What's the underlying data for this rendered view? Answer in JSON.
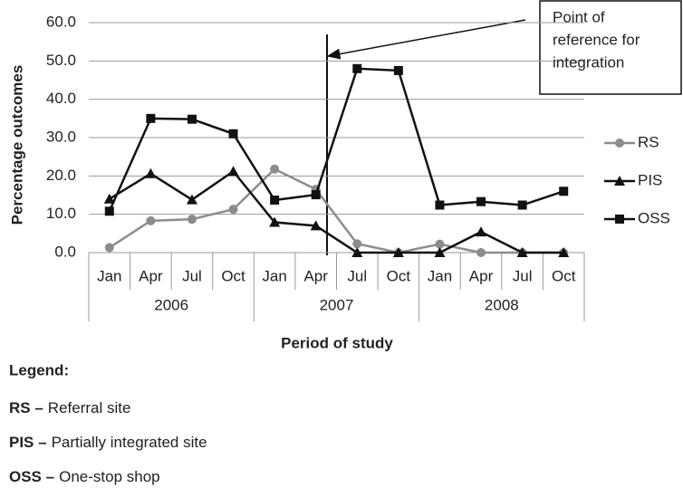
{
  "chart_data": {
    "type": "line",
    "y_label": "Percentage outcomes",
    "x_label": "Period of study",
    "categories": [
      "Jan",
      "Apr",
      "Jul",
      "Oct",
      "Jan",
      "Apr",
      "Jul",
      "Oct",
      "Jan",
      "Apr",
      "Jul",
      "Oct"
    ],
    "groups": [
      "2006",
      "2007",
      "2008"
    ],
    "series": [
      {
        "name": "RS",
        "color": "#8c8c8c",
        "marker": "circle",
        "values": [
          1.3,
          8.3,
          8.7,
          11.3,
          21.8,
          16.5,
          2.3,
          0,
          2.2,
          0,
          0,
          0
        ]
      },
      {
        "name": "PIS",
        "color": "#111111",
        "marker": "triangle",
        "values": [
          14,
          20.6,
          13.8,
          21.2,
          7.9,
          7.0,
          0,
          0,
          0,
          5.4,
          0,
          0
        ]
      },
      {
        "name": "OSS",
        "color": "#111111",
        "marker": "square",
        "values": [
          10.8,
          35,
          34.8,
          31,
          13.7,
          15.1,
          48,
          47.5,
          12.4,
          13.3,
          12.4,
          16
        ]
      }
    ],
    "ylim": [
      0,
      60
    ],
    "yticks": [
      {
        "value": 0,
        "label": "0.0"
      },
      {
        "value": 10,
        "label": "10.0"
      },
      {
        "value": 20,
        "label": "20.0"
      },
      {
        "value": 30,
        "label": "30.0"
      },
      {
        "value": 40,
        "label": "40.0"
      },
      {
        "value": 50,
        "label": "50.0"
      },
      {
        "value": 60,
        "label": "60.0"
      }
    ],
    "grid": true,
    "legend": "right",
    "annotation": [
      "Point of",
      "reference for",
      "integration"
    ]
  },
  "notes": {
    "heading": "Legend:",
    "items": [
      {
        "abbr": "RS –",
        "text": "Referral site"
      },
      {
        "abbr": "PIS –",
        "text": "Partially integrated site"
      },
      {
        "abbr": "OSS –",
        "text": "One-stop shop"
      }
    ]
  }
}
